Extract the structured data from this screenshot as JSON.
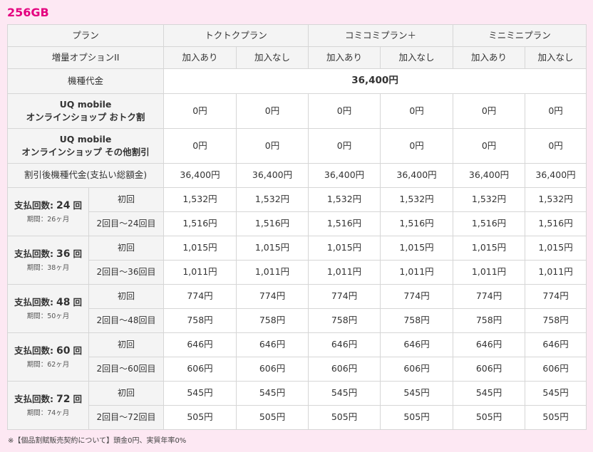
{
  "capacity": "256GB",
  "header": {
    "plan_label": "プラン",
    "plans": [
      "トクトクプラン",
      "コミコミプラン＋",
      "ミニミニプラン"
    ],
    "option_label": "増量オプションII",
    "option_values": [
      "加入あり",
      "加入なし"
    ]
  },
  "device_price": {
    "label": "機種代金",
    "value": "36,400円"
  },
  "discount_rows": [
    {
      "label_line1": "UQ mobile",
      "label_line2": "オンラインショップ おトク割",
      "values": [
        "0円",
        "0円",
        "0円",
        "0円",
        "0円",
        "0円"
      ]
    },
    {
      "label_line1": "UQ mobile",
      "label_line2": "オンラインショップ その他割引",
      "values": [
        "0円",
        "0円",
        "0円",
        "0円",
        "0円",
        "0円"
      ]
    }
  ],
  "after_discount": {
    "label": "割引後機種代金(支払い総額金)",
    "values": [
      "36,400円",
      "36,400円",
      "36,400円",
      "36,400円",
      "36,400円",
      "36,400円"
    ]
  },
  "payment_groups": [
    {
      "title": "支払回数:",
      "count": "24",
      "unit": "回",
      "period": "期間：26ヶ月",
      "first_label": "初回",
      "first_values": [
        "1,532円",
        "1,532円",
        "1,532円",
        "1,532円",
        "1,532円",
        "1,532円"
      ],
      "rest_label": "2回目〜24回目",
      "rest_values": [
        "1,516円",
        "1,516円",
        "1,516円",
        "1,516円",
        "1,516円",
        "1,516円"
      ]
    },
    {
      "title": "支払回数:",
      "count": "36",
      "unit": "回",
      "period": "期間：38ヶ月",
      "first_label": "初回",
      "first_values": [
        "1,015円",
        "1,015円",
        "1,015円",
        "1,015円",
        "1,015円",
        "1,015円"
      ],
      "rest_label": "2回目〜36回目",
      "rest_values": [
        "1,011円",
        "1,011円",
        "1,011円",
        "1,011円",
        "1,011円",
        "1,011円"
      ]
    },
    {
      "title": "支払回数:",
      "count": "48",
      "unit": "回",
      "period": "期間：50ヶ月",
      "first_label": "初回",
      "first_values": [
        "774円",
        "774円",
        "774円",
        "774円",
        "774円",
        "774円"
      ],
      "rest_label": "2回目〜48回目",
      "rest_values": [
        "758円",
        "758円",
        "758円",
        "758円",
        "758円",
        "758円"
      ]
    },
    {
      "title": "支払回数:",
      "count": "60",
      "unit": "回",
      "period": "期間：62ヶ月",
      "first_label": "初回",
      "first_values": [
        "646円",
        "646円",
        "646円",
        "646円",
        "646円",
        "646円"
      ],
      "rest_label": "2回目〜60回目",
      "rest_values": [
        "606円",
        "606円",
        "606円",
        "606円",
        "606円",
        "606円"
      ]
    },
    {
      "title": "支払回数:",
      "count": "72",
      "unit": "回",
      "period": "期間：74ヶ月",
      "first_label": "初回",
      "first_values": [
        "545円",
        "545円",
        "545円",
        "545円",
        "545円",
        "545円"
      ],
      "rest_label": "2回目〜72回目",
      "rest_values": [
        "505円",
        "505円",
        "505円",
        "505円",
        "505円",
        "505円"
      ]
    }
  ],
  "footnote": "※【個品割賦販売契約について】頭金0円、実質年率0%",
  "colors": {
    "accent": "#e4007f",
    "background": "#fde8f3",
    "header_bg": "#f4f4f4",
    "border": "#d6d6d6"
  }
}
